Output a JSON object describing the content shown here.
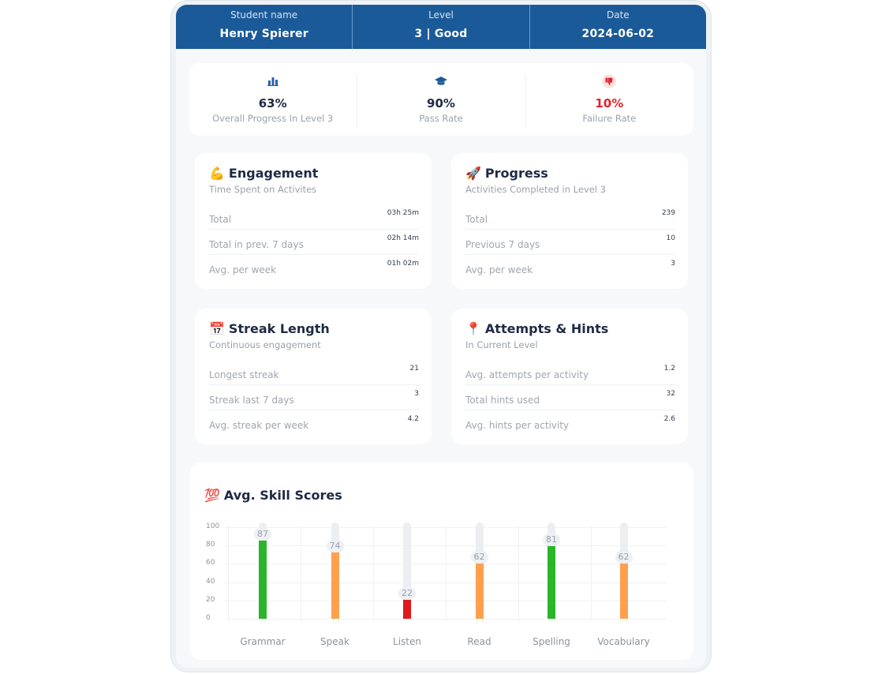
{
  "header": {
    "student_label": "Student name",
    "student_value": "Henry Spierer",
    "level_label": "Level",
    "level_value": "3 | Good",
    "date_label": "Date",
    "date_value": "2024-06-02"
  },
  "stats": [
    {
      "icon": "bar-chart-icon",
      "value": "63%",
      "caption": "Overall Progress In Level 3"
    },
    {
      "icon": "graduation-cap-icon",
      "value": "90%",
      "caption": "Pass Rate"
    },
    {
      "icon": "thumbs-down-icon",
      "value": "10%",
      "caption": "Failure Rate",
      "color": "#e3242b"
    }
  ],
  "engagement": {
    "emoji": "💪",
    "title": "Engagement",
    "subtitle": "Time Spent on Activites",
    "rows": [
      {
        "label": "Total",
        "value": "03h 25m"
      },
      {
        "label": "Total in prev. 7 days",
        "value": "02h 14m"
      },
      {
        "label": "Avg. per week",
        "value": "01h 02m"
      }
    ]
  },
  "progress": {
    "emoji": "🚀",
    "title": "Progress",
    "subtitle": "Activities Completed in Level 3",
    "rows": [
      {
        "label": "Total",
        "value": "239"
      },
      {
        "label": "Previous 7 days",
        "value": "10"
      },
      {
        "label": "Avg. per week",
        "value": "3"
      }
    ]
  },
  "streak": {
    "emoji": "📅",
    "title": "Streak Length",
    "subtitle": "Continuous engagement",
    "rows": [
      {
        "label": "Longest streak",
        "value": "21"
      },
      {
        "label": "Streak last 7 days",
        "value": "3"
      },
      {
        "label": "Avg. streak per week",
        "value": "4.2"
      }
    ]
  },
  "attempts": {
    "emoji": "📍",
    "title": "Attempts & Hints",
    "subtitle": "In Current Level",
    "rows": [
      {
        "label": "Avg. attempts per activity",
        "value": "1.2"
      },
      {
        "label": "Total hints used",
        "value": "32"
      },
      {
        "label": "Avg. hints per activity",
        "value": "2.6"
      }
    ]
  },
  "skills": {
    "emoji": "💯",
    "title": "Avg. Skill Scores"
  },
  "chart_data": {
    "type": "bar",
    "title": "Avg. Skill Scores",
    "categories": [
      "Grammar",
      "Speak",
      "Listen",
      "Read",
      "Spelling",
      "Vocabulary"
    ],
    "values": [
      87,
      74,
      22,
      62,
      81,
      62
    ],
    "bar_labels": [
      "87",
      "74",
      "22",
      "62",
      "81",
      "62"
    ],
    "colors": [
      "#2ab52a",
      "#ffa04d",
      "#e0191d",
      "#ffa04d",
      "#2ab52a",
      "#ffa04d"
    ],
    "yticks": [
      "0",
      "20",
      "40",
      "60",
      "80",
      "100"
    ],
    "ylim": [
      0,
      100
    ],
    "grid": true
  }
}
